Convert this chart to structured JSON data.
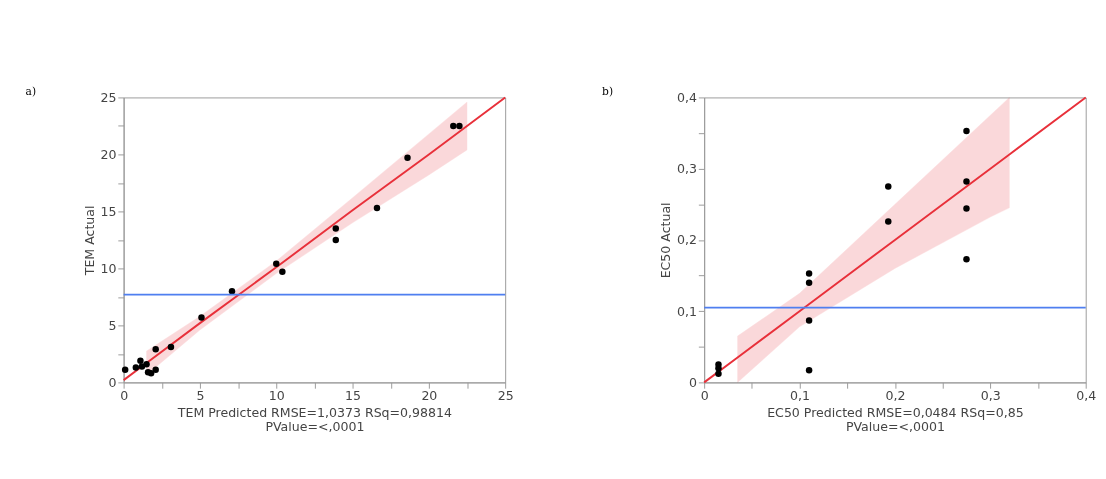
{
  "chart_data": [
    {
      "type": "scatter",
      "title": "a)",
      "xlabel": "TEM Predicted RMSE=1,0373 RSq=0,98814\nPValue=<,0001",
      "ylabel": "TEM Actual",
      "xlim": [
        0,
        25
      ],
      "ylim": [
        0,
        25
      ],
      "xticks": [
        0,
        {
          "value": 2.5,
          "label": null
        },
        5,
        {
          "value": 7.5,
          "label": null
        },
        10,
        {
          "value": 12.5,
          "label": null
        },
        15,
        {
          "value": 17.5,
          "label": null
        },
        20,
        {
          "value": 22.5,
          "label": null
        },
        25
      ],
      "yticks": [
        0,
        {
          "value": 2.5,
          "label": null
        },
        5,
        {
          "value": 7.5,
          "label": null
        },
        10,
        {
          "value": 12.5,
          "label": null
        },
        15,
        {
          "value": 17.5,
          "label": null
        },
        20,
        {
          "value": 22.5,
          "label": null
        },
        25
      ],
      "grid": false,
      "series": [
        {
          "type": "line",
          "color": "#e8303a",
          "x": [
            0,
            1.5,
            5,
            10,
            15,
            20,
            22.5,
            25
          ],
          "values": [
            0.2,
            1.7,
            5.2,
            10.1,
            15.1,
            20.0,
            22.5,
            25.0
          ],
          "lower": [
            null,
            0.65,
            4.6,
            9.55,
            14.0,
            18.2,
            20.4,
            null
          ],
          "upper": [
            null,
            2.75,
            5.8,
            10.65,
            16.2,
            21.8,
            24.6,
            null
          ]
        },
        {
          "color": "#000000",
          "marker": "circle",
          "x": [
            0.1,
            0.8,
            1.1,
            1.2,
            1.5,
            1.6,
            1.8,
            2.1,
            2.1,
            3.1,
            5.1,
            7.1,
            10,
            10.4,
            13.9,
            13.9,
            16.6,
            18.6,
            21.6,
            22
          ],
          "values": [
            1.1,
            1.3,
            1.9,
            1.4,
            1.6,
            0.9,
            0.8,
            2.9,
            1.1,
            3.1,
            5.7,
            8.0,
            10.4,
            9.7,
            13.5,
            12.5,
            15.3,
            19.7,
            22.5,
            22.5
          ]
        }
      ],
      "ref_lines": [
        {
          "axis": "y",
          "value": 7.7,
          "color": "#4f7ff0"
        }
      ]
    },
    {
      "type": "scatter",
      "title": "b)",
      "xlabel": "EC50 Predicted RMSE=0,0484 RSq=0,85\nPValue=<,0001",
      "ylabel": "EC50 Actual",
      "xlim": [
        0,
        0.4
      ],
      "ylim": [
        0,
        0.4
      ],
      "xticks": [
        0,
        {
          "value": 0.05,
          "label": null
        },
        {
          "value": 0.1,
          "label": "0,1"
        },
        {
          "value": 0.15,
          "label": null
        },
        {
          "value": 0.2,
          "label": "0,2"
        },
        {
          "value": 0.25,
          "label": null
        },
        {
          "value": 0.3,
          "label": "0,3"
        },
        {
          "value": 0.35,
          "label": null
        },
        {
          "value": 0.4,
          "label": "0,4"
        }
      ],
      "yticks": [
        0,
        {
          "value": 0.05,
          "label": null
        },
        {
          "value": 0.1,
          "label": "0,1"
        },
        {
          "value": 0.15,
          "label": null
        },
        {
          "value": 0.2,
          "label": "0,2"
        },
        {
          "value": 0.25,
          "label": null
        },
        {
          "value": 0.3,
          "label": "0,3"
        },
        {
          "value": 0.35,
          "label": null
        },
        {
          "value": 0.4,
          "label": "0,4"
        }
      ],
      "grid": false,
      "series": [
        {
          "type": "line",
          "color": "#e8303a",
          "x": [
            0,
            0.035,
            0.1,
            0.2,
            0.3,
            0.32,
            0.4
          ],
          "values": [
            0,
            0.035,
            0.1,
            0.2,
            0.3,
            0.32,
            0.4
          ],
          "lower": [
            null,
            0.0,
            0.078,
            0.16,
            0.232,
            0.245,
            null
          ],
          "upper": [
            null,
            0.065,
            0.125,
            0.25,
            0.375,
            0.4,
            null
          ]
        },
        {
          "color": "#000000",
          "marker": "circle",
          "x": [
            0.015,
            0.015,
            0.015,
            0.11,
            0.11,
            0.11,
            0.11,
            0.193,
            0.193,
            0.275,
            0.275,
            0.275,
            0.275
          ],
          "values": [
            0.025,
            0.02,
            0.012,
            0.153,
            0.14,
            0.087,
            0.017,
            0.275,
            0.226,
            0.353,
            0.282,
            0.244,
            0.173
          ]
        }
      ],
      "ref_lines": [
        {
          "axis": "y",
          "value": 0.105,
          "color": "#4f7ff0"
        }
      ]
    }
  ]
}
